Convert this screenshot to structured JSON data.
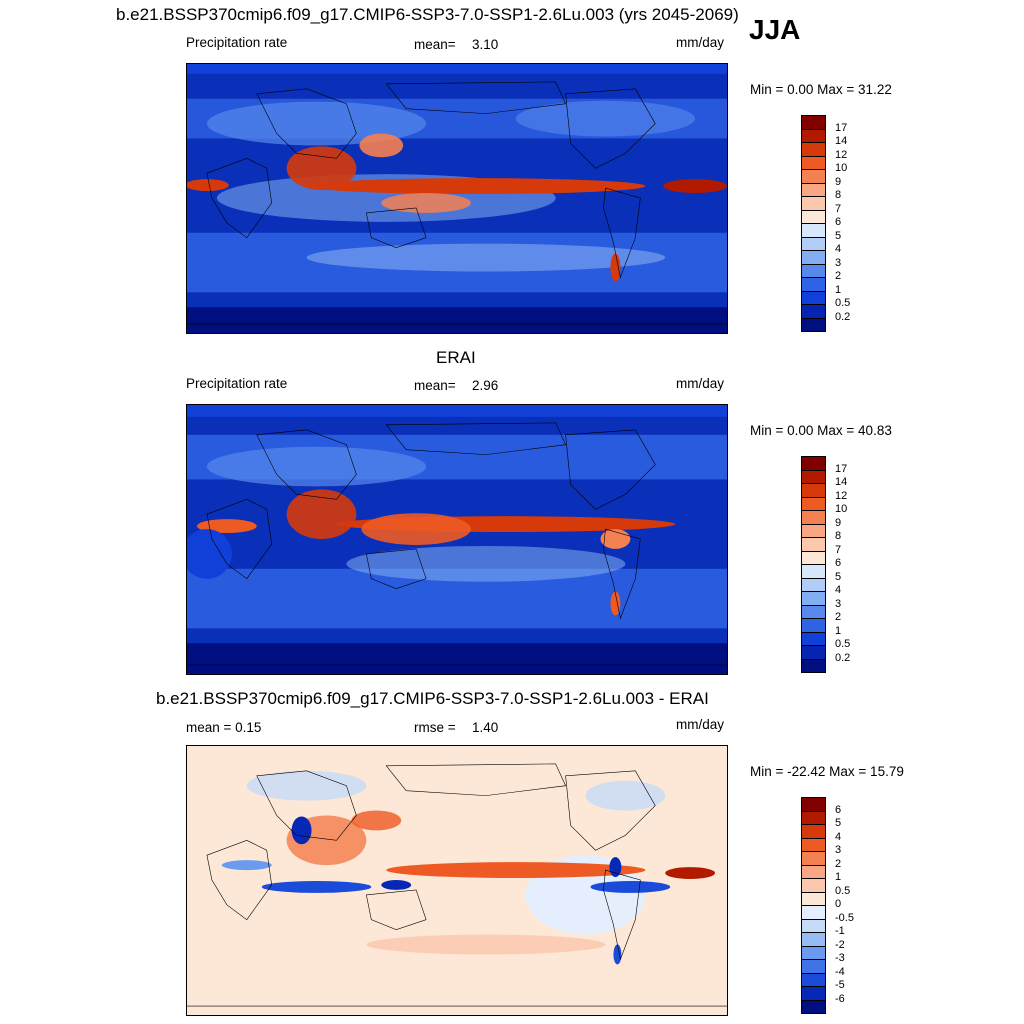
{
  "season": "JJA",
  "panels": [
    {
      "title": "b.e21.BSSP370cmip6.f09_g17.CMIP6-SSP3-7.0-SSP1-2.6Lu.003 (yrs 2045-2069)",
      "left_label": "Precipitation rate",
      "stat_label": "mean=",
      "stat_value": "3.10",
      "units": "mm/day",
      "minmax": "Min =   0.00 Max =  31.22"
    },
    {
      "title": "ERAI",
      "left_label": "Precipitation rate",
      "stat_label": "mean=",
      "stat_value": "2.96",
      "units": "mm/day",
      "minmax": "Min =   0.00 Max =  40.83"
    },
    {
      "title": "b.e21.BSSP370cmip6.f09_g17.CMIP6-SSP3-7.0-SSP1-2.6Lu.003 - ERAI",
      "left_label": "mean =   0.15",
      "stat_label": "rmse =",
      "stat_value": "1.40",
      "units": "mm/day",
      "minmax": "Min = -22.42 Max =  15.79"
    }
  ],
  "colorbars": {
    "precip": {
      "labels": [
        "17",
        "14",
        "12",
        "10",
        "9",
        "8",
        "7",
        "6",
        "5",
        "4",
        "3",
        "2",
        "1",
        "0.5",
        "0.2"
      ],
      "colors": [
        "#800000",
        "#b21a00",
        "#d63a0b",
        "#ee5a23",
        "#f48152",
        "#f8a683",
        "#fbc7ad",
        "#fde7d6",
        "#d8e8fc",
        "#b2cdf8",
        "#84aef2",
        "#5789ec",
        "#2e63e4",
        "#1040d8",
        "#0624b0",
        "#000f80"
      ]
    },
    "diff": {
      "labels": [
        "6",
        "5",
        "4",
        "3",
        "2",
        "1",
        "0.5",
        "0",
        "-0.5",
        "-1",
        "-2",
        "-3",
        "-4",
        "-5",
        "-6"
      ],
      "colors": [
        "#800000",
        "#b21a00",
        "#d63a0b",
        "#ee5a23",
        "#f48152",
        "#f8a683",
        "#fbc7ad",
        "#fde7d6",
        "#e4eefc",
        "#c6dbf8",
        "#96bdf3",
        "#6a9bee",
        "#3f73e6",
        "#1a4cd9",
        "#0628b6",
        "#000f80"
      ]
    }
  },
  "map_colors": {
    "ocean_deep": "#0a2fb8",
    "ocean_mid": "#2e63e4",
    "ocean_light": "#84aef2",
    "polar": "#000f80",
    "rain_heavy": "#d63a0b",
    "rain_mod": "#f48152",
    "diff_base": "#fde7d6",
    "diff_pos": "#f8a683",
    "diff_pos_strong": "#d63a0b",
    "diff_neg": "#b2cdf8",
    "diff_neg_strong": "#1a4cd9",
    "coast": "#000000"
  }
}
